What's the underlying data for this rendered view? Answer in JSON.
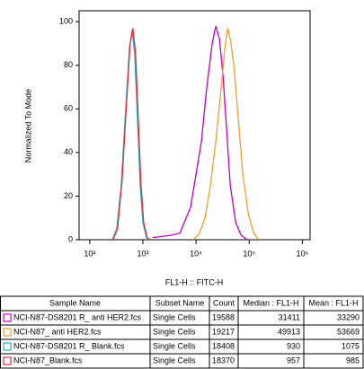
{
  "chart_data": {
    "type": "line",
    "xlabel": "FL1-H :: FITC-H",
    "ylabel": "Normalized To Mode",
    "log_x": true,
    "xlim": [
      63,
      1400000
    ],
    "ylim": [
      0,
      105
    ],
    "xticks": [
      {
        "value": 100,
        "label": "10²"
      },
      {
        "value": 1000,
        "label": "10³"
      },
      {
        "value": 10000,
        "label": "10⁴"
      },
      {
        "value": 100000,
        "label": "10⁵"
      },
      {
        "value": 1000000,
        "label": "10⁶"
      }
    ],
    "yticks": [
      0,
      20,
      40,
      60,
      80,
      100
    ],
    "series": [
      {
        "color": "#c000c0",
        "x": [
          1535,
          3350,
          4950,
          6020,
          7910,
          10000,
          12640,
          15970,
          20180,
          23590,
          27600,
          32240,
          37670,
          44060,
          55720,
          70310,
          92470
        ],
        "values": [
          1,
          2,
          3,
          8,
          15,
          30,
          45,
          70,
          90,
          98,
          92,
          75,
          50,
          25,
          8,
          2,
          0
        ]
      },
      {
        "color": "#f0a030",
        "x": [
          8890,
          11700,
          14760,
          18660,
          23590,
          29840,
          34850,
          39150,
          44060,
          51520,
          62630,
          76000,
          96200,
          121600,
          153500
        ],
        "values": [
          0,
          3,
          10,
          25,
          45,
          70,
          88,
          97,
          92,
          80,
          55,
          30,
          12,
          3,
          0
        ]
      },
      {
        "color": "#20b0c0",
        "x": [
          265,
          322,
          392,
          476,
          557,
          626,
          703,
          791,
          889,
          1000,
          1169,
          1315
        ],
        "values": [
          0,
          5,
          25,
          60,
          88,
          96,
          85,
          55,
          25,
          8,
          1,
          0
        ]
      },
      {
        "color": "#e03040",
        "x": [
          275,
          333,
          405,
          492,
          575,
          647,
          727,
          818,
          919,
          1034,
          1208,
          1359
        ],
        "values": [
          0,
          5,
          27,
          63,
          90,
          97,
          86,
          56,
          26,
          8,
          1,
          0
        ]
      }
    ]
  },
  "table": {
    "columns": [
      "Sample Name",
      "Subset Name",
      "Count",
      "Median : FL1-H",
      "Mean : FL1-H"
    ],
    "rows": [
      [
        "NCI-N87-DS8201 R_ anti HER2.fcs",
        "Single Cells",
        "19588",
        "31411",
        "33290"
      ],
      [
        "NCI-N87_ anti HER2.fcs",
        "Single Cells",
        "19217",
        "49913",
        "53669"
      ],
      [
        "NCI-N87-DS8201 R_ Blank.fcs",
        "Single Cells",
        "18408",
        "930",
        "1075"
      ],
      [
        "NCI-N87_Blank.fcs",
        "Single Cells",
        "18370",
        "957",
        "985"
      ]
    ]
  }
}
